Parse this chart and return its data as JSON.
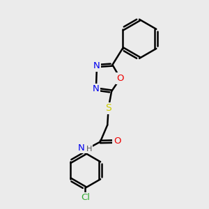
{
  "bg_color": "#ebebeb",
  "bond_color": "#000000",
  "bond_width": 1.8,
  "atom_colors": {
    "N": "#0000ee",
    "O": "#ee0000",
    "S": "#cccc00",
    "Cl": "#33aa33",
    "C": "#000000",
    "H": "#555555"
  },
  "font_size": 9.5,
  "figsize": [
    3.0,
    3.0
  ],
  "dpi": 100
}
